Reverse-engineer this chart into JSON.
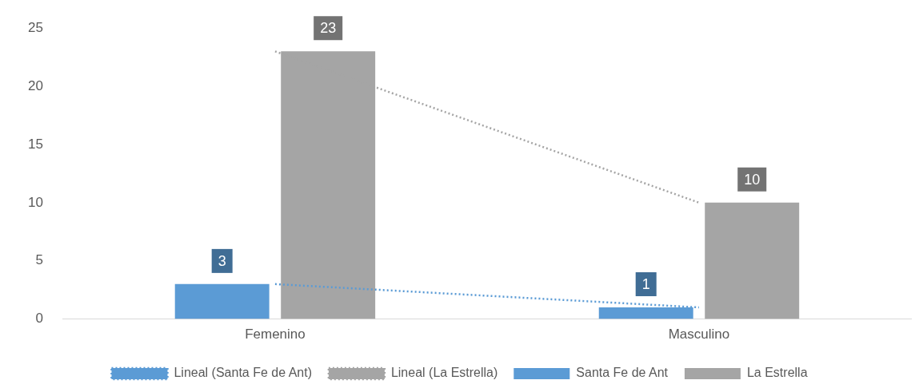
{
  "chart_data": {
    "type": "bar",
    "categories": [
      "Femenino",
      "Masculino"
    ],
    "series": [
      {
        "name": "Santa Fe de Ant",
        "color": "#5b9bd5",
        "values": [
          3,
          1
        ],
        "value_labels": [
          "3",
          "1"
        ]
      },
      {
        "name": "La Estrella",
        "color": "#a5a5a5",
        "values": [
          23,
          10
        ],
        "value_labels": [
          "23",
          "10"
        ]
      },
      {
        "name": "Lineal (Santa Fe de Ant)",
        "type": "line",
        "x": [
          "Femenino",
          "Masculino"
        ],
        "color": "#5b9bd5",
        "values": [
          3,
          1
        ],
        "line_style": "dotted"
      },
      {
        "name": "Lineal (La Estrella)",
        "type": "line",
        "x": [
          "Femenino",
          "Masculino"
        ],
        "color": "#a5a5a5",
        "values": [
          23,
          10
        ],
        "line_style": "dotted"
      }
    ],
    "ylim": [
      0,
      25
    ],
    "yticks": [
      0,
      5,
      10,
      15,
      20,
      25
    ],
    "grid": false,
    "legend": "bottom",
    "marker": "none"
  }
}
